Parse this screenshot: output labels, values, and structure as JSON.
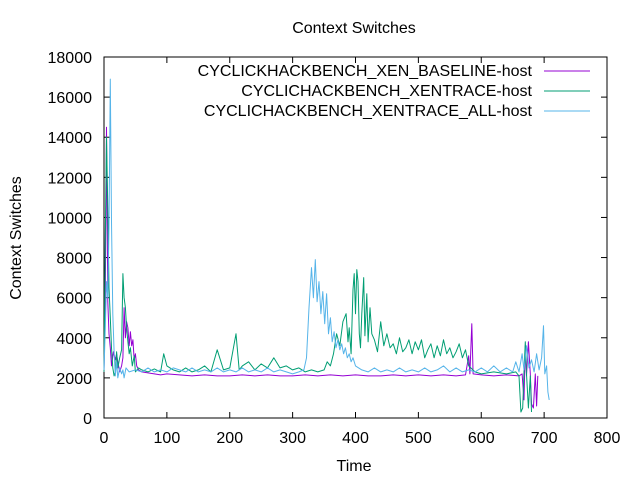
{
  "chart_data": {
    "type": "line",
    "title": "Context Switches",
    "xlabel": "Time",
    "ylabel": "Context Switches",
    "xlim": [
      0,
      800
    ],
    "ylim": [
      0,
      18000
    ],
    "x_ticks": [
      0,
      100,
      200,
      300,
      400,
      500,
      600,
      700,
      800
    ],
    "y_ticks": [
      0,
      2000,
      4000,
      6000,
      8000,
      10000,
      12000,
      14000,
      16000,
      18000
    ],
    "grid": false,
    "legend_position": "top-right",
    "series": [
      {
        "name": "CYCLICKHACKBENCH_XEN_BASELINE-host",
        "color": "#9400d3",
        "points": [
          [
            0,
            2300
          ],
          [
            2,
            6200
          ],
          [
            4,
            14500
          ],
          [
            6,
            5800
          ],
          [
            8,
            4200
          ],
          [
            10,
            3500
          ],
          [
            12,
            2600
          ],
          [
            15,
            3300
          ],
          [
            18,
            2900
          ],
          [
            20,
            3200
          ],
          [
            22,
            2800
          ],
          [
            25,
            2300
          ],
          [
            28,
            2600
          ],
          [
            30,
            3000
          ],
          [
            32,
            5500
          ],
          [
            34,
            4000
          ],
          [
            36,
            4800
          ],
          [
            38,
            4500
          ],
          [
            40,
            3600
          ],
          [
            42,
            4300
          ],
          [
            44,
            3600
          ],
          [
            46,
            3900
          ],
          [
            48,
            2900
          ],
          [
            50,
            3200
          ],
          [
            52,
            2600
          ],
          [
            55,
            2400
          ],
          [
            60,
            2300
          ],
          [
            70,
            2250
          ],
          [
            80,
            2200
          ],
          [
            90,
            2150
          ],
          [
            100,
            2200
          ],
          [
            120,
            2150
          ],
          [
            140,
            2100
          ],
          [
            160,
            2150
          ],
          [
            180,
            2100
          ],
          [
            200,
            2100
          ],
          [
            220,
            2150
          ],
          [
            240,
            2100
          ],
          [
            260,
            2150
          ],
          [
            280,
            2100
          ],
          [
            300,
            2100
          ],
          [
            320,
            2150
          ],
          [
            340,
            2100
          ],
          [
            360,
            2150
          ],
          [
            380,
            2100
          ],
          [
            400,
            2150
          ],
          [
            420,
            2100
          ],
          [
            440,
            2100
          ],
          [
            460,
            2150
          ],
          [
            480,
            2100
          ],
          [
            500,
            2150
          ],
          [
            520,
            2100
          ],
          [
            540,
            2150
          ],
          [
            560,
            2100
          ],
          [
            575,
            2150
          ],
          [
            580,
            3100
          ],
          [
            582,
            2200
          ],
          [
            585,
            4700
          ],
          [
            587,
            2200
          ],
          [
            600,
            2150
          ],
          [
            620,
            2100
          ],
          [
            640,
            2150
          ],
          [
            660,
            2100
          ],
          [
            665,
            2200
          ],
          [
            668,
            900
          ],
          [
            670,
            3600
          ],
          [
            672,
            2100
          ],
          [
            675,
            3800
          ],
          [
            678,
            2200
          ],
          [
            680,
            700
          ],
          [
            683,
            500
          ],
          [
            686,
            2200
          ],
          [
            688,
            600
          ],
          [
            690,
            2100
          ]
        ]
      },
      {
        "name": "CYCLICHACKBENCH_XENTRACE-host",
        "color": "#009e73",
        "points": [
          [
            0,
            2300
          ],
          [
            2,
            9000
          ],
          [
            4,
            14000
          ],
          [
            6,
            10500
          ],
          [
            8,
            6500
          ],
          [
            10,
            5000
          ],
          [
            12,
            3500
          ],
          [
            14,
            2500
          ],
          [
            16,
            2100
          ],
          [
            18,
            2300
          ],
          [
            20,
            3300
          ],
          [
            22,
            2500
          ],
          [
            25,
            3000
          ],
          [
            28,
            3400
          ],
          [
            30,
            7200
          ],
          [
            32,
            6000
          ],
          [
            34,
            5500
          ],
          [
            36,
            4500
          ],
          [
            38,
            3800
          ],
          [
            40,
            3200
          ],
          [
            42,
            3500
          ],
          [
            45,
            2600
          ],
          [
            48,
            3100
          ],
          [
            50,
            2300
          ],
          [
            55,
            2500
          ],
          [
            60,
            2400
          ],
          [
            70,
            2300
          ],
          [
            80,
            2450
          ],
          [
            90,
            2300
          ],
          [
            95,
            3200
          ],
          [
            100,
            2600
          ],
          [
            110,
            2400
          ],
          [
            120,
            2300
          ],
          [
            130,
            2500
          ],
          [
            140,
            2300
          ],
          [
            150,
            2400
          ],
          [
            160,
            2600
          ],
          [
            170,
            2300
          ],
          [
            180,
            3400
          ],
          [
            190,
            2400
          ],
          [
            200,
            2500
          ],
          [
            210,
            4200
          ],
          [
            215,
            2400
          ],
          [
            220,
            2600
          ],
          [
            230,
            2800
          ],
          [
            240,
            2400
          ],
          [
            250,
            2700
          ],
          [
            260,
            2500
          ],
          [
            270,
            3000
          ],
          [
            280,
            2500
          ],
          [
            290,
            2600
          ],
          [
            300,
            2400
          ],
          [
            310,
            2500
          ],
          [
            320,
            2300
          ],
          [
            330,
            2400
          ],
          [
            340,
            2300
          ],
          [
            350,
            2400
          ],
          [
            355,
            2800
          ],
          [
            360,
            2600
          ],
          [
            365,
            3200
          ],
          [
            370,
            4200
          ],
          [
            375,
            3600
          ],
          [
            380,
            4800
          ],
          [
            385,
            5200
          ],
          [
            388,
            3800
          ],
          [
            390,
            4500
          ],
          [
            393,
            3200
          ],
          [
            396,
            6400
          ],
          [
            398,
            7200
          ],
          [
            400,
            5200
          ],
          [
            402,
            7400
          ],
          [
            404,
            6800
          ],
          [
            406,
            4200
          ],
          [
            408,
            3500
          ],
          [
            410,
            5200
          ],
          [
            413,
            7000
          ],
          [
            415,
            4100
          ],
          [
            418,
            6200
          ],
          [
            420,
            3800
          ],
          [
            423,
            5500
          ],
          [
            426,
            4200
          ],
          [
            430,
            3900
          ],
          [
            435,
            3300
          ],
          [
            440,
            4800
          ],
          [
            445,
            3600
          ],
          [
            450,
            4200
          ],
          [
            455,
            3500
          ],
          [
            460,
            3700
          ],
          [
            465,
            3200
          ],
          [
            470,
            4000
          ],
          [
            475,
            3300
          ],
          [
            480,
            3500
          ],
          [
            485,
            3900
          ],
          [
            490,
            3200
          ],
          [
            495,
            3800
          ],
          [
            500,
            3400
          ],
          [
            505,
            3900
          ],
          [
            510,
            3000
          ],
          [
            515,
            3400
          ],
          [
            520,
            3700
          ],
          [
            525,
            3000
          ],
          [
            530,
            3600
          ],
          [
            535,
            3100
          ],
          [
            540,
            3900
          ],
          [
            545,
            3200
          ],
          [
            550,
            3500
          ],
          [
            555,
            3000
          ],
          [
            560,
            3300
          ],
          [
            565,
            3700
          ],
          [
            570,
            3000
          ],
          [
            575,
            3400
          ],
          [
            580,
            2600
          ],
          [
            590,
            2300
          ],
          [
            600,
            2200
          ],
          [
            620,
            2300
          ],
          [
            640,
            2200
          ],
          [
            655,
            2300
          ],
          [
            660,
            2100
          ],
          [
            663,
            300
          ],
          [
            666,
            500
          ],
          [
            668,
            2300
          ],
          [
            670,
            3800
          ],
          [
            672,
            2200
          ],
          [
            675,
            500
          ],
          [
            678,
            2100
          ],
          [
            680,
            300
          ]
        ]
      },
      {
        "name": "CYCLICHACKBENCH_XENTRACE_ALL-host",
        "color": "#56b4e9",
        "points": [
          [
            0,
            2400
          ],
          [
            2,
            4500
          ],
          [
            4,
            6800
          ],
          [
            6,
            6000
          ],
          [
            8,
            9500
          ],
          [
            10,
            16900
          ],
          [
            12,
            9800
          ],
          [
            14,
            5200
          ],
          [
            16,
            3300
          ],
          [
            18,
            2100
          ],
          [
            20,
            2800
          ],
          [
            22,
            2000
          ],
          [
            25,
            2500
          ],
          [
            28,
            2200
          ],
          [
            30,
            2400
          ],
          [
            32,
            2000
          ],
          [
            35,
            2500
          ],
          [
            40,
            2300
          ],
          [
            50,
            2400
          ],
          [
            60,
            2300
          ],
          [
            70,
            2500
          ],
          [
            80,
            2300
          ],
          [
            90,
            2400
          ],
          [
            100,
            2300
          ],
          [
            110,
            2500
          ],
          [
            120,
            2400
          ],
          [
            130,
            2300
          ],
          [
            140,
            2500
          ],
          [
            150,
            2300
          ],
          [
            160,
            2400
          ],
          [
            170,
            2300
          ],
          [
            180,
            2500
          ],
          [
            190,
            2300
          ],
          [
            200,
            2400
          ],
          [
            210,
            2300
          ],
          [
            220,
            2500
          ],
          [
            230,
            2300
          ],
          [
            240,
            2400
          ],
          [
            250,
            2300
          ],
          [
            260,
            2500
          ],
          [
            270,
            2300
          ],
          [
            280,
            2400
          ],
          [
            290,
            2300
          ],
          [
            300,
            2200
          ],
          [
            310,
            2300
          ],
          [
            318,
            2400
          ],
          [
            322,
            3000
          ],
          [
            326,
            5500
          ],
          [
            330,
            7500
          ],
          [
            333,
            6000
          ],
          [
            336,
            7900
          ],
          [
            339,
            5800
          ],
          [
            342,
            6800
          ],
          [
            345,
            5200
          ],
          [
            348,
            6300
          ],
          [
            351,
            4700
          ],
          [
            354,
            6200
          ],
          [
            357,
            4200
          ],
          [
            360,
            5000
          ],
          [
            363,
            3800
          ],
          [
            366,
            4300
          ],
          [
            369,
            3500
          ],
          [
            372,
            3900
          ],
          [
            375,
            3400
          ],
          [
            378,
            3700
          ],
          [
            381,
            3200
          ],
          [
            384,
            3500
          ],
          [
            387,
            3000
          ],
          [
            390,
            3200
          ],
          [
            393,
            2800
          ],
          [
            396,
            3000
          ],
          [
            400,
            2600
          ],
          [
            410,
            2400
          ],
          [
            420,
            2300
          ],
          [
            430,
            2500
          ],
          [
            440,
            2300
          ],
          [
            450,
            2400
          ],
          [
            460,
            2300
          ],
          [
            470,
            2500
          ],
          [
            480,
            2300
          ],
          [
            490,
            2400
          ],
          [
            500,
            2300
          ],
          [
            510,
            2500
          ],
          [
            520,
            2300
          ],
          [
            530,
            2400
          ],
          [
            540,
            2600
          ],
          [
            550,
            2300
          ],
          [
            560,
            2500
          ],
          [
            570,
            2300
          ],
          [
            580,
            2400
          ],
          [
            590,
            2300
          ],
          [
            600,
            2500
          ],
          [
            610,
            2300
          ],
          [
            620,
            2600
          ],
          [
            630,
            2300
          ],
          [
            640,
            2500
          ],
          [
            650,
            2300
          ],
          [
            655,
            2800
          ],
          [
            660,
            2300
          ],
          [
            665,
            3200
          ],
          [
            668,
            2400
          ],
          [
            672,
            3600
          ],
          [
            676,
            2500
          ],
          [
            680,
            2900
          ],
          [
            684,
            2300
          ],
          [
            688,
            3200
          ],
          [
            692,
            2400
          ],
          [
            696,
            3000
          ],
          [
            699,
            4600
          ],
          [
            701,
            2200
          ],
          [
            704,
            2600
          ],
          [
            706,
            1300
          ],
          [
            708,
            900
          ]
        ]
      }
    ]
  }
}
